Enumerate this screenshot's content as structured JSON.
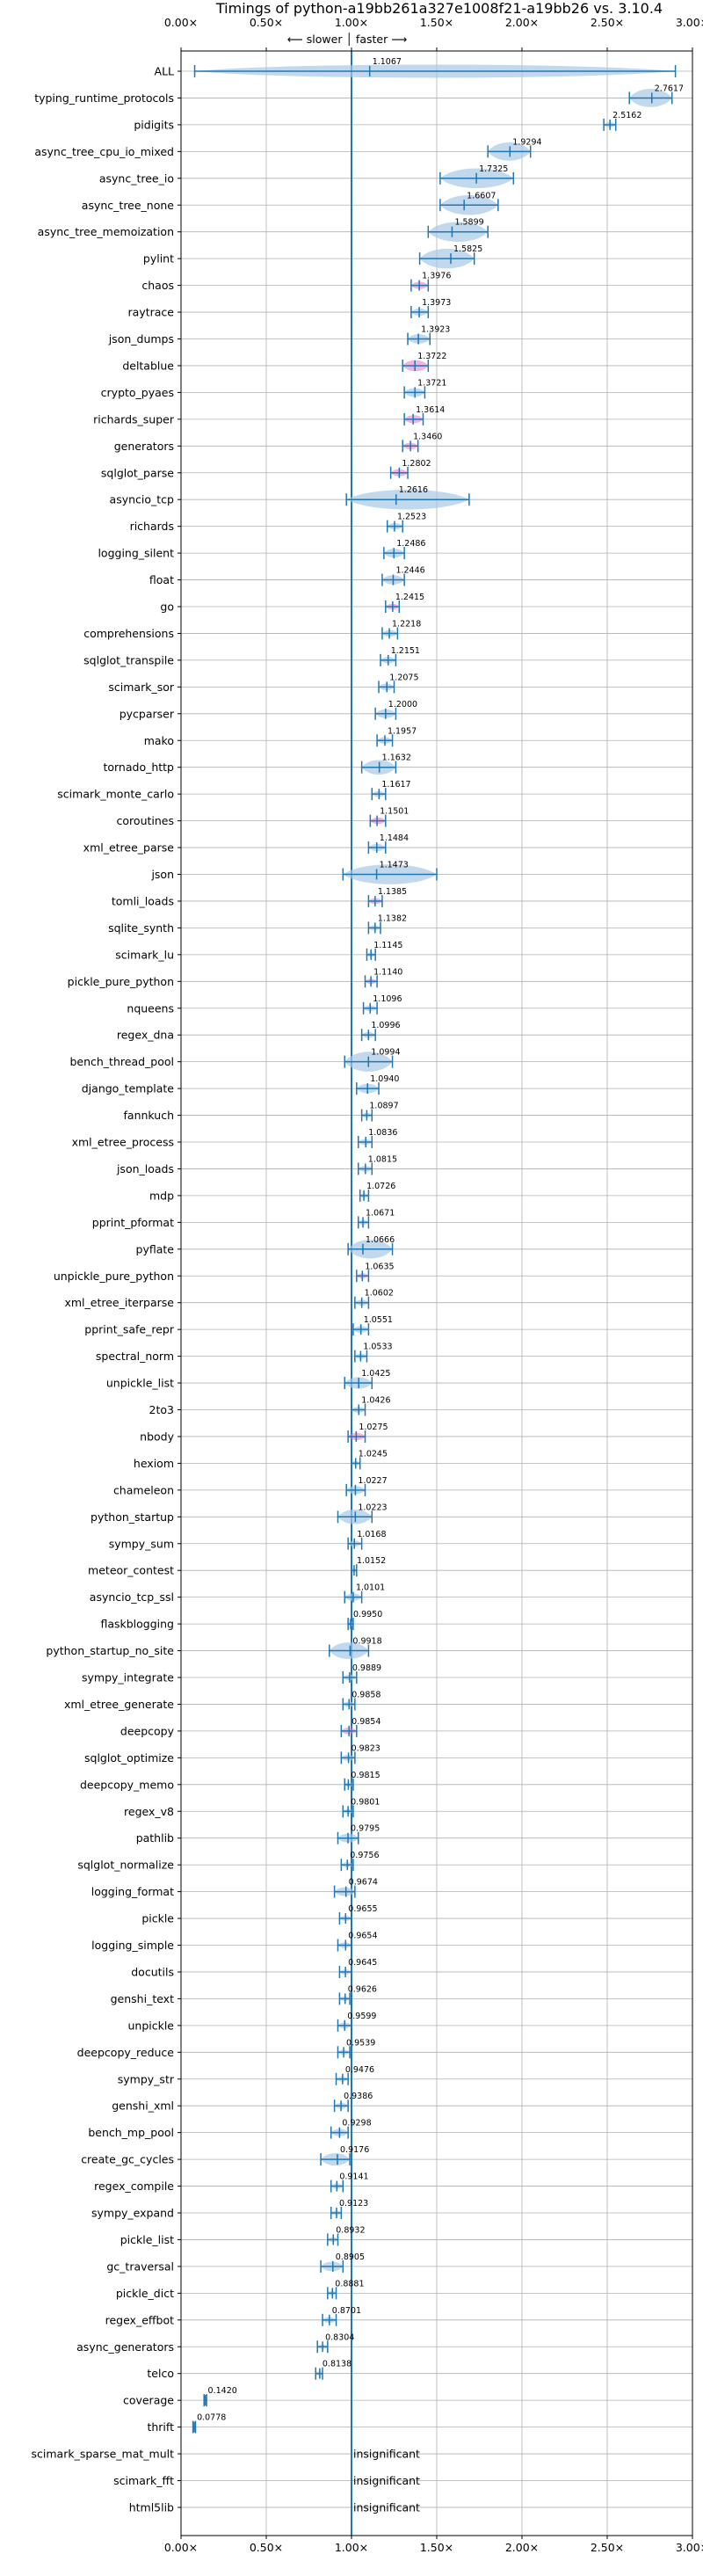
{
  "chart_data": {
    "type": "violin",
    "title": "Timings of python-a19bb261a327e1008f21-a19bb26 vs. 3.10.4",
    "subtitle": "⟵ slower │ faster ⟶",
    "x_ticks": [
      "0.00×",
      "0.50×",
      "1.00×",
      "1.50×",
      "2.00×",
      "2.50×",
      "3.00×"
    ],
    "xlim": [
      0.0,
      3.0
    ],
    "reference_line": 1.0,
    "grid": true,
    "colors": {
      "violin": "#a8c8e6",
      "whisker": "#1f77b4",
      "highlight": "#e377c2",
      "ref": "#1f77b4"
    },
    "benchmarks": [
      {
        "name": "ALL",
        "value": 1.1067,
        "label": "1.1067",
        "min": 0.08,
        "max": 2.9
      },
      {
        "name": "typing_runtime_protocols",
        "value": 2.7617,
        "label": "2.7617",
        "min": 2.63,
        "max": 2.88
      },
      {
        "name": "pidigits",
        "value": 2.5162,
        "label": "2.5162",
        "min": 2.48,
        "max": 2.55
      },
      {
        "name": "async_tree_cpu_io_mixed",
        "value": 1.9294,
        "label": "1.9294",
        "min": 1.8,
        "max": 2.05
      },
      {
        "name": "async_tree_io",
        "value": 1.7325,
        "label": "1.7325",
        "min": 1.52,
        "max": 1.95
      },
      {
        "name": "async_tree_none",
        "value": 1.6607,
        "label": "1.6607",
        "min": 1.52,
        "max": 1.86
      },
      {
        "name": "async_tree_memoization",
        "value": 1.5899,
        "label": "1.5899",
        "min": 1.45,
        "max": 1.8
      },
      {
        "name": "pylint",
        "value": 1.5825,
        "label": "1.5825",
        "min": 1.4,
        "max": 1.72
      },
      {
        "name": "chaos",
        "value": 1.3976,
        "label": "1.3976",
        "min": 1.35,
        "max": 1.45,
        "highlight": true
      },
      {
        "name": "raytrace",
        "value": 1.3973,
        "label": "1.3973",
        "min": 1.35,
        "max": 1.45
      },
      {
        "name": "json_dumps",
        "value": 1.3923,
        "label": "1.3923",
        "min": 1.33,
        "max": 1.46
      },
      {
        "name": "deltablue",
        "value": 1.3722,
        "label": "1.3722",
        "min": 1.3,
        "max": 1.45,
        "highlight": true
      },
      {
        "name": "crypto_pyaes",
        "value": 1.3721,
        "label": "1.3721",
        "min": 1.31,
        "max": 1.43
      },
      {
        "name": "richards_super",
        "value": 1.3614,
        "label": "1.3614",
        "min": 1.31,
        "max": 1.42,
        "highlight": true
      },
      {
        "name": "generators",
        "value": 1.346,
        "label": "1.3460",
        "min": 1.3,
        "max": 1.39,
        "highlight": true
      },
      {
        "name": "sqlglot_parse",
        "value": 1.2802,
        "label": "1.2802",
        "min": 1.23,
        "max": 1.33,
        "highlight": true
      },
      {
        "name": "asyncio_tcp",
        "value": 1.2616,
        "label": "1.2616",
        "min": 0.97,
        "max": 1.69
      },
      {
        "name": "richards",
        "value": 1.2523,
        "label": "1.2523",
        "min": 1.21,
        "max": 1.3
      },
      {
        "name": "logging_silent",
        "value": 1.2486,
        "label": "1.2486",
        "min": 1.19,
        "max": 1.31
      },
      {
        "name": "float",
        "value": 1.2446,
        "label": "1.2446",
        "min": 1.18,
        "max": 1.31
      },
      {
        "name": "go",
        "value": 1.2415,
        "label": "1.2415",
        "min": 1.2,
        "max": 1.28,
        "highlight": true
      },
      {
        "name": "comprehensions",
        "value": 1.2218,
        "label": "1.2218",
        "min": 1.18,
        "max": 1.27
      },
      {
        "name": "sqlglot_transpile",
        "value": 1.2151,
        "label": "1.2151",
        "min": 1.17,
        "max": 1.26
      },
      {
        "name": "scimark_sor",
        "value": 1.2075,
        "label": "1.2075",
        "min": 1.16,
        "max": 1.25
      },
      {
        "name": "pycparser",
        "value": 1.2,
        "label": "1.2000",
        "min": 1.14,
        "max": 1.26
      },
      {
        "name": "mako",
        "value": 1.1957,
        "label": "1.1957",
        "min": 1.15,
        "max": 1.24
      },
      {
        "name": "tornado_http",
        "value": 1.1632,
        "label": "1.1632",
        "min": 1.06,
        "max": 1.26
      },
      {
        "name": "scimark_monte_carlo",
        "value": 1.1617,
        "label": "1.1617",
        "min": 1.12,
        "max": 1.2
      },
      {
        "name": "coroutines",
        "value": 1.1501,
        "label": "1.1501",
        "min": 1.11,
        "max": 1.2,
        "highlight": true
      },
      {
        "name": "xml_etree_parse",
        "value": 1.1484,
        "label": "1.1484",
        "min": 1.1,
        "max": 1.2
      },
      {
        "name": "json",
        "value": 1.1473,
        "label": "1.1473",
        "min": 0.95,
        "max": 1.5
      },
      {
        "name": "tomli_loads",
        "value": 1.1385,
        "label": "1.1385",
        "min": 1.1,
        "max": 1.18,
        "highlight": true
      },
      {
        "name": "sqlite_synth",
        "value": 1.1382,
        "label": "1.1382",
        "min": 1.1,
        "max": 1.17
      },
      {
        "name": "scimark_lu",
        "value": 1.1145,
        "label": "1.1145",
        "min": 1.09,
        "max": 1.14
      },
      {
        "name": "pickle_pure_python",
        "value": 1.114,
        "label": "1.1140",
        "min": 1.08,
        "max": 1.15,
        "highlight": true
      },
      {
        "name": "nqueens",
        "value": 1.1096,
        "label": "1.1096",
        "min": 1.07,
        "max": 1.15
      },
      {
        "name": "regex_dna",
        "value": 1.0996,
        "label": "1.0996",
        "min": 1.06,
        "max": 1.14
      },
      {
        "name": "bench_thread_pool",
        "value": 1.0994,
        "label": "1.0994",
        "min": 0.96,
        "max": 1.24
      },
      {
        "name": "django_template",
        "value": 1.094,
        "label": "1.0940",
        "min": 1.03,
        "max": 1.16
      },
      {
        "name": "fannkuch",
        "value": 1.0897,
        "label": "1.0897",
        "min": 1.06,
        "max": 1.12
      },
      {
        "name": "xml_etree_process",
        "value": 1.0836,
        "label": "1.0836",
        "min": 1.04,
        "max": 1.12
      },
      {
        "name": "json_loads",
        "value": 1.0815,
        "label": "1.0815",
        "min": 1.04,
        "max": 1.12
      },
      {
        "name": "mdp",
        "value": 1.0726,
        "label": "1.0726",
        "min": 1.05,
        "max": 1.1
      },
      {
        "name": "pprint_pformat",
        "value": 1.0671,
        "label": "1.0671",
        "min": 1.04,
        "max": 1.1
      },
      {
        "name": "pyflate",
        "value": 1.0666,
        "label": "1.0666",
        "min": 0.98,
        "max": 1.24
      },
      {
        "name": "unpickle_pure_python",
        "value": 1.0635,
        "label": "1.0635",
        "min": 1.03,
        "max": 1.1,
        "highlight": true
      },
      {
        "name": "xml_etree_iterparse",
        "value": 1.0602,
        "label": "1.0602",
        "min": 1.02,
        "max": 1.1
      },
      {
        "name": "pprint_safe_repr",
        "value": 1.0551,
        "label": "1.0551",
        "min": 1.01,
        "max": 1.1
      },
      {
        "name": "spectral_norm",
        "value": 1.0533,
        "label": "1.0533",
        "min": 1.02,
        "max": 1.09
      },
      {
        "name": "unpickle_list",
        "value": 1.0425,
        "label": "1.0425",
        "min": 0.96,
        "max": 1.12
      },
      {
        "name": "2to3",
        "value": 1.0426,
        "label": "1.0426",
        "min": 1.0,
        "max": 1.08
      },
      {
        "name": "nbody",
        "value": 1.0275,
        "label": "1.0275",
        "min": 0.98,
        "max": 1.08,
        "highlight": true
      },
      {
        "name": "hexiom",
        "value": 1.0245,
        "label": "1.0245",
        "min": 1.0,
        "max": 1.05
      },
      {
        "name": "chameleon",
        "value": 1.0227,
        "label": "1.0227",
        "min": 0.97,
        "max": 1.08
      },
      {
        "name": "python_startup",
        "value": 1.0223,
        "label": "1.0223",
        "min": 0.92,
        "max": 1.12
      },
      {
        "name": "sympy_sum",
        "value": 1.0168,
        "label": "1.0168",
        "min": 0.98,
        "max": 1.06
      },
      {
        "name": "meteor_contest",
        "value": 1.0152,
        "label": "1.0152",
        "min": 1.0,
        "max": 1.03
      },
      {
        "name": "asyncio_tcp_ssl",
        "value": 1.0101,
        "label": "1.0101",
        "min": 0.96,
        "max": 1.06
      },
      {
        "name": "flaskblogging",
        "value": 0.995,
        "label": "0.9950",
        "min": 0.98,
        "max": 1.01
      },
      {
        "name": "python_startup_no_site",
        "value": 0.9918,
        "label": "0.9918",
        "min": 0.87,
        "max": 1.1
      },
      {
        "name": "sympy_integrate",
        "value": 0.9889,
        "label": "0.9889",
        "min": 0.95,
        "max": 1.03
      },
      {
        "name": "xml_etree_generate",
        "value": 0.9858,
        "label": "0.9858",
        "min": 0.95,
        "max": 1.02
      },
      {
        "name": "deepcopy",
        "value": 0.9854,
        "label": "0.9854",
        "min": 0.94,
        "max": 1.03,
        "highlight": true
      },
      {
        "name": "sqlglot_optimize",
        "value": 0.9823,
        "label": "0.9823",
        "min": 0.94,
        "max": 1.02
      },
      {
        "name": "deepcopy_memo",
        "value": 0.9815,
        "label": "0.9815",
        "min": 0.96,
        "max": 1.01
      },
      {
        "name": "regex_v8",
        "value": 0.9801,
        "label": "0.9801",
        "min": 0.95,
        "max": 1.01
      },
      {
        "name": "pathlib",
        "value": 0.9795,
        "label": "0.9795",
        "min": 0.92,
        "max": 1.04
      },
      {
        "name": "sqlglot_normalize",
        "value": 0.9756,
        "label": "0.9756",
        "min": 0.94,
        "max": 1.01
      },
      {
        "name": "logging_format",
        "value": 0.9674,
        "label": "0.9674",
        "min": 0.9,
        "max": 1.02
      },
      {
        "name": "pickle",
        "value": 0.9655,
        "label": "0.9655",
        "min": 0.93,
        "max": 1.0
      },
      {
        "name": "logging_simple",
        "value": 0.9654,
        "label": "0.9654",
        "min": 0.92,
        "max": 1.0
      },
      {
        "name": "docutils",
        "value": 0.9645,
        "label": "0.9645",
        "min": 0.93,
        "max": 1.0
      },
      {
        "name": "genshi_text",
        "value": 0.9626,
        "label": "0.9626",
        "min": 0.93,
        "max": 0.99
      },
      {
        "name": "unpickle",
        "value": 0.9599,
        "label": "0.9599",
        "min": 0.92,
        "max": 1.0
      },
      {
        "name": "deepcopy_reduce",
        "value": 0.9539,
        "label": "0.9539",
        "min": 0.92,
        "max": 0.99
      },
      {
        "name": "sympy_str",
        "value": 0.9476,
        "label": "0.9476",
        "min": 0.91,
        "max": 0.98
      },
      {
        "name": "genshi_xml",
        "value": 0.9386,
        "label": "0.9386",
        "min": 0.9,
        "max": 0.98
      },
      {
        "name": "bench_mp_pool",
        "value": 0.9298,
        "label": "0.9298",
        "min": 0.88,
        "max": 0.98
      },
      {
        "name": "create_gc_cycles",
        "value": 0.9176,
        "label": "0.9176",
        "min": 0.82,
        "max": 0.99
      },
      {
        "name": "regex_compile",
        "value": 0.9141,
        "label": "0.9141",
        "min": 0.88,
        "max": 0.95
      },
      {
        "name": "sympy_expand",
        "value": 0.9123,
        "label": "0.9123",
        "min": 0.88,
        "max": 0.94
      },
      {
        "name": "pickle_list",
        "value": 0.8932,
        "label": "0.8932",
        "min": 0.86,
        "max": 0.92
      },
      {
        "name": "gc_traversal",
        "value": 0.8905,
        "label": "0.8905",
        "min": 0.82,
        "max": 0.95
      },
      {
        "name": "pickle_dict",
        "value": 0.8881,
        "label": "0.8881",
        "min": 0.86,
        "max": 0.91
      },
      {
        "name": "regex_effbot",
        "value": 0.8701,
        "label": "0.8701",
        "min": 0.83,
        "max": 0.91
      },
      {
        "name": "async_generators",
        "value": 0.8304,
        "label": "0.8304",
        "min": 0.8,
        "max": 0.86
      },
      {
        "name": "telco",
        "value": 0.8138,
        "label": "0.8138",
        "min": 0.79,
        "max": 0.83
      },
      {
        "name": "coverage",
        "value": 0.142,
        "label": "0.1420",
        "min": 0.135,
        "max": 0.15
      },
      {
        "name": "thrift",
        "value": 0.0778,
        "label": "0.0778",
        "min": 0.07,
        "max": 0.085
      },
      {
        "name": "scimark_sparse_mat_mult",
        "insignificant": true,
        "label": "insignificant"
      },
      {
        "name": "scimark_fft",
        "insignificant": true,
        "label": "insignificant"
      },
      {
        "name": "html5lib",
        "insignificant": true,
        "label": "insignificant"
      }
    ]
  }
}
